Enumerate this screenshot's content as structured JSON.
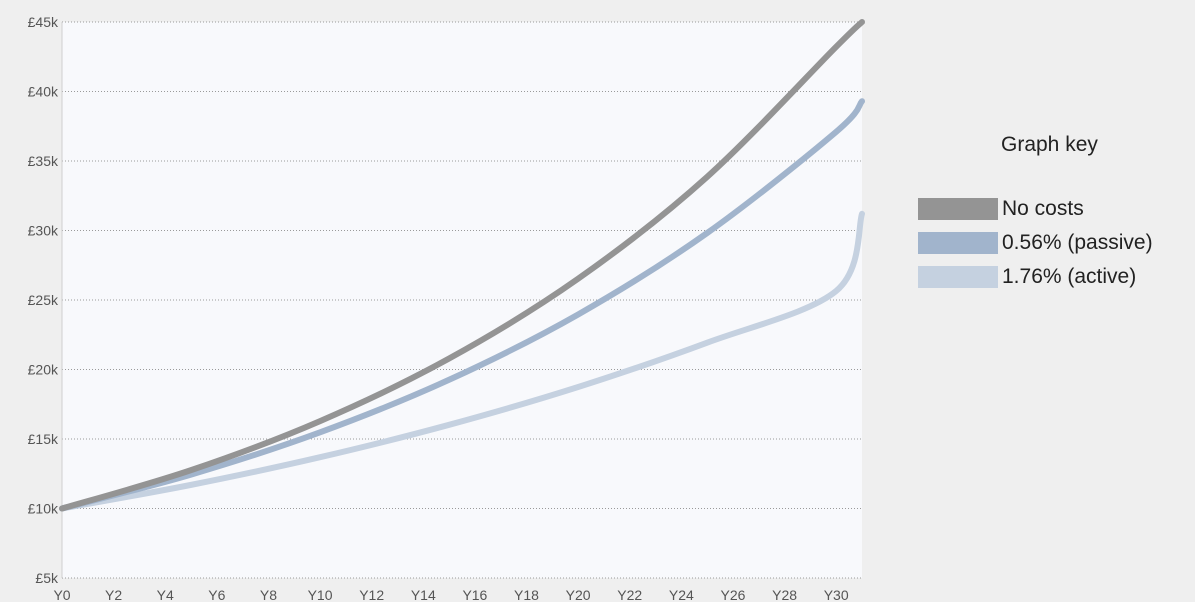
{
  "chart_data": {
    "type": "line",
    "title": "",
    "xlabel": "",
    "ylabel": "",
    "x_tick_labels": [
      "Y0",
      "Y2",
      "Y4",
      "Y6",
      "Y8",
      "Y10",
      "Y12",
      "Y14",
      "Y16",
      "Y18",
      "Y20",
      "Y22",
      "Y24",
      "Y26",
      "Y28",
      "Y30"
    ],
    "y_tick_labels": [
      "£5k",
      "£10k",
      "£15k",
      "£20k",
      "£25k",
      "£30k",
      "£35k",
      "£40k",
      "£45k"
    ],
    "xlim": [
      0,
      31
    ],
    "ylim": [
      5000,
      45000
    ],
    "grid": "horizontal dotted",
    "legend_position": "right",
    "legend_title": "Graph key",
    "series": [
      {
        "name": "No costs",
        "color": "#949494",
        "x": [
          0,
          5,
          10,
          15,
          20,
          25,
          30,
          31
        ],
        "y": [
          10000,
          12760,
          16290,
          20790,
          26530,
          33860,
          43220,
          45000
        ]
      },
      {
        "name": "0.56% (passive)",
        "color": "#a1b4cc",
        "x": [
          0,
          5,
          10,
          15,
          20,
          25,
          30,
          31
        ],
        "y": [
          10000,
          12440,
          15480,
          19260,
          23960,
          29820,
          37100,
          39300
        ]
      },
      {
        "name": "1.76% (active)",
        "color": "#c5d1e0",
        "x": [
          0,
          5,
          10,
          15,
          20,
          25,
          30,
          31
        ],
        "y": [
          10000,
          11700,
          13690,
          16020,
          18740,
          21930,
          25650,
          31200
        ]
      }
    ]
  }
}
